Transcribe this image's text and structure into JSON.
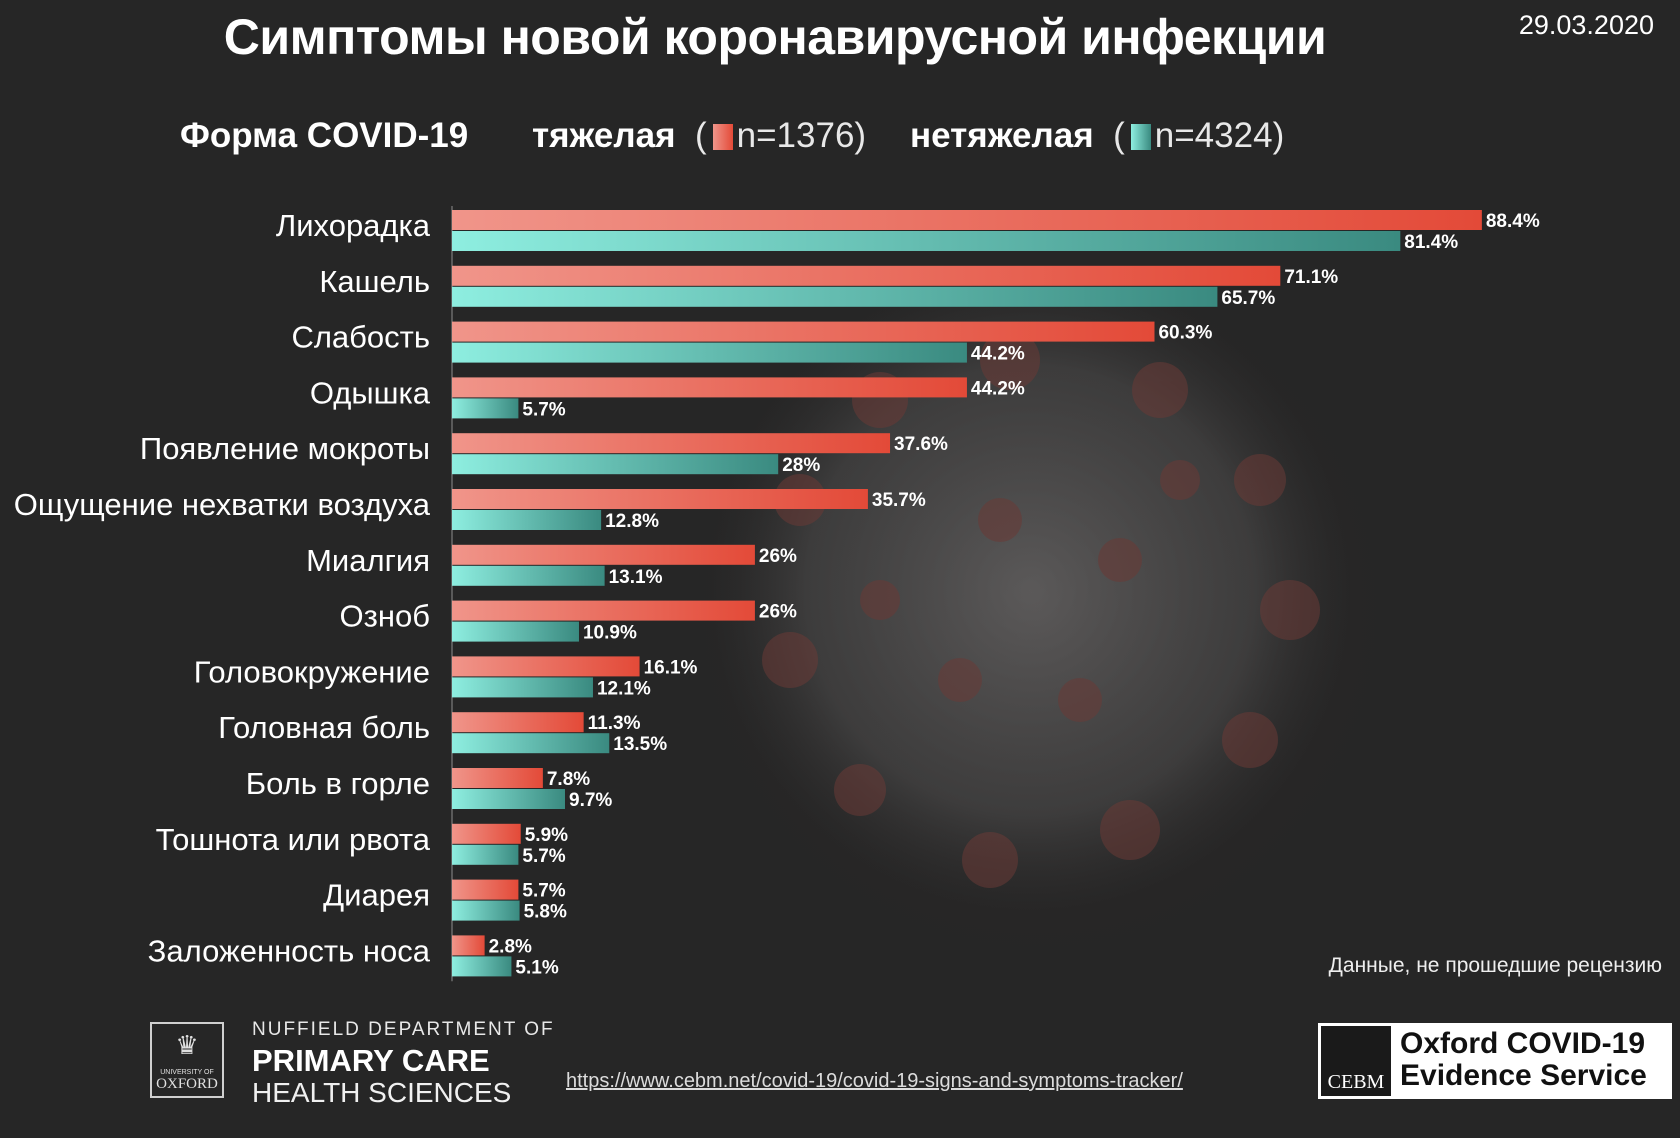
{
  "title": "Симптомы новой коронавирусной инфекции",
  "date": "29.03.2020",
  "legend": {
    "label": "Форма COVID-19",
    "severe_label": "тяжелая",
    "severe_n": "n=1376",
    "mild_label": "нетяжелая",
    "mild_n": "n=4324"
  },
  "footnote": "Данные, не прошедшие рецензию",
  "url": "https://www.cebm.net/covid-19/covid-19-signs-and-symptoms-tracker/",
  "logos": {
    "oxford": {
      "line1": "UNIVERSITY OF",
      "line2": "OXFORD"
    },
    "nuffield": {
      "line1": "NUFFIELD DEPARTMENT OF",
      "line2": "PRIMARY CARE",
      "line3": "HEALTH SCIENCES"
    },
    "cebm": {
      "mark": "CEBM",
      "line1": "Oxford COVID-19",
      "line2": "Evidence Service"
    }
  },
  "colors": {
    "severe_light": "#f0958a",
    "severe_dark": "#e34a38",
    "mild_light": "#8eeee0",
    "mild_dark": "#3a8a80",
    "background": "#262626"
  },
  "chart_data": {
    "type": "bar",
    "orientation": "horizontal",
    "xlim": [
      0,
      100
    ],
    "grid": false,
    "legend_position": "top",
    "categories": [
      "Лихорадка",
      "Кашель",
      "Слабость",
      "Одышка",
      "Появление мокроты",
      "Ощущение нехватки воздуха",
      "Миалгия",
      "Озноб",
      "Головокружение",
      "Головная боль",
      "Боль в горле",
      "Тошнота или рвота",
      "Диарея",
      "Заложенность носа"
    ],
    "series": [
      {
        "name": "тяжелая",
        "values": [
          88.4,
          71.1,
          60.3,
          44.2,
          37.6,
          35.7,
          26,
          26,
          16.1,
          11.3,
          7.8,
          5.9,
          5.7,
          2.8
        ],
        "labels": [
          "88.4%",
          "71.1%",
          "60.3%",
          "44.2%",
          "37.6%",
          "35.7%",
          "26%",
          "26%",
          "16.1%",
          "11.3%",
          "7.8%",
          "5.9%",
          "5.7%",
          "2.8%"
        ]
      },
      {
        "name": "нетяжелая",
        "values": [
          81.4,
          65.7,
          44.2,
          5.7,
          28,
          12.8,
          13.1,
          10.9,
          12.1,
          13.5,
          9.7,
          5.7,
          5.8,
          5.1
        ],
        "labels": [
          "81.4%",
          "65.7%",
          "44.2%",
          "5.7%",
          "28%",
          "12.8%",
          "13.1%",
          "10.9%",
          "12.1%",
          "13.5%",
          "9.7%",
          "5.7%",
          "5.8%",
          "5.1%"
        ]
      }
    ]
  }
}
